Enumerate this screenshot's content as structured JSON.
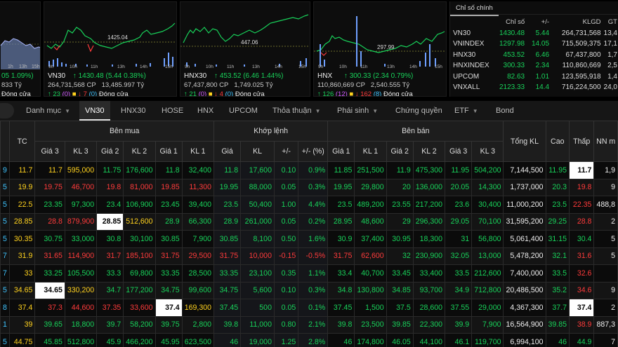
{
  "charts": [
    {
      "id": "vnindex",
      "name": "",
      "title_change": "05 1.09%)",
      "sub": "833 Tỷ",
      "ad": {
        "up": "",
        "down": "",
        "label": "Đóng cửa"
      },
      "hours": [
        "1h",
        "13h",
        "15h"
      ],
      "ref_label": ""
    },
    {
      "id": "vn30",
      "name": "VN30",
      "arrow": "↑",
      "price": "1430.48",
      "change": "(5.44 0.38%)",
      "vol": "264,731,568 CP",
      "value": "13,485.997 Tỷ",
      "up": "↑ 23",
      "ceil": "(0)",
      "down": "↓ 7",
      "floor": "(0)",
      "close": "Đóng cửa",
      "ref_label": "1425.04",
      "hours": [
        "9h",
        "10h",
        "11h",
        "13h",
        "14h",
        "15h"
      ]
    },
    {
      "id": "hnx30",
      "name": "HNX30",
      "arrow": "↑",
      "price": "453.52",
      "change": "(6.46 1.44%)",
      "vol": "67,437,800 CP",
      "value": "1,749.025 Tỷ",
      "up": "↑ 21",
      "ceil": "(0)",
      "down": "↓ 4",
      "floor": "(0)",
      "close": "Đóng cửa",
      "ref_label": "447.06",
      "hours": [
        "9h",
        "10h",
        "11h",
        "13h",
        "14h",
        "15h"
      ]
    },
    {
      "id": "hnx",
      "name": "HNX",
      "arrow": "↑",
      "price": "300.33",
      "change": "(2.34 0.79%)",
      "vol": "110,860,669 CP",
      "value": "2,540.555 Tỷ",
      "up": "↑ 126",
      "ceil": "(12)",
      "down": "↓ 162",
      "floor": "(8)",
      "close": "Đóng cửa",
      "ref_label": "297.99",
      "hours": [
        "9h",
        "10h",
        "11h",
        "13h",
        "14h",
        "15h"
      ]
    }
  ],
  "index_panel": {
    "tab": "Chỉ số chính",
    "headers": [
      "Chỉ số",
      "+/-",
      "KLGD",
      "GT"
    ],
    "rows": [
      {
        "name": "VN30",
        "value": "1430.48",
        "change": "5.44",
        "vol": "264,731,568",
        "gt": "13,4"
      },
      {
        "name": "VNINDEX",
        "value": "1297.98",
        "change": "14.05",
        "vol": "715,509,375",
        "gt": "17,1"
      },
      {
        "name": "HNX30",
        "value": "453.52",
        "change": "6.46",
        "vol": "67,437,800",
        "gt": "1,7"
      },
      {
        "name": "HNXINDEX",
        "value": "300.33",
        "change": "2.34",
        "vol": "110,860,669",
        "gt": "2,5"
      },
      {
        "name": "UPCOM",
        "value": "82.63",
        "change": "1.01",
        "vol": "123,595,918",
        "gt": "1,4"
      },
      {
        "name": "VNXALL",
        "value": "2123.33",
        "change": "14.4",
        "vol": "716,224,500",
        "gt": "24,0"
      }
    ]
  },
  "tabs": [
    {
      "label": "Danh mục",
      "chev": true
    },
    {
      "label": "VN30",
      "active": true
    },
    {
      "label": "HNX30"
    },
    {
      "label": "HOSE"
    },
    {
      "label": "HNX"
    },
    {
      "label": "UPCOM"
    },
    {
      "label": "Thỏa thuận",
      "chev": true
    },
    {
      "label": "Phái sinh",
      "chev": true
    },
    {
      "label": "Chứng quyền"
    },
    {
      "label": "ETF",
      "chev": true
    },
    {
      "label": "Bond"
    }
  ],
  "board": {
    "group_headers": [
      "Bên mua",
      "Khớp lệnh",
      "Bên bán"
    ],
    "col_headers": [
      "TC",
      "Giá 3",
      "KL 3",
      "Giá 2",
      "KL 2",
      "Giá 1",
      "KL 1",
      "Giá",
      "KL",
      "+/-",
      "+/- (%)",
      "Giá 1",
      "KL 1",
      "Giá 2",
      "KL 2",
      "Giá 3",
      "KL 3",
      "Tổng KL",
      "Cao",
      "Thấp",
      "NN m"
    ],
    "rows": [
      {
        "sym": "9",
        "tc": "11.7",
        "b3": "11.7",
        "bk3": "595,000",
        "b2": "11.75",
        "bk2": "176,600",
        "b1": "11.8",
        "bk1": "32,400",
        "p": "11.8",
        "kl": "17,600",
        "ch": "0.10",
        "pct": "0.9%",
        "s1": "11.85",
        "sk1": "251,500",
        "s2": "11.9",
        "sk2": "475,300",
        "s3": "11.95",
        "sk3": "504,200",
        "tot": "7,144,500",
        "hi": "11.95",
        "lo": "11.7",
        "nn": "1,9"
      },
      {
        "sym": "5",
        "tc": "19.9",
        "b3": "19.75",
        "bk3": "46,700",
        "b2": "19.8",
        "bk2": "81,000",
        "b1": "19.85",
        "bk1": "11,300",
        "p": "19.95",
        "kl": "88,000",
        "ch": "0.05",
        "pct": "0.3%",
        "s1": "19.95",
        "sk1": "29,800",
        "s2": "20",
        "sk2": "136,000",
        "s3": "20.05",
        "sk3": "14,300",
        "tot": "1,737,000",
        "hi": "20.3",
        "lo": "19.8",
        "nn": "9"
      },
      {
        "sym": "5",
        "tc": "22.5",
        "b3": "23.35",
        "bk3": "97,300",
        "b2": "23.4",
        "bk2": "106,900",
        "b1": "23.45",
        "bk1": "39,400",
        "p": "23.5",
        "kl": "50,400",
        "ch": "1.00",
        "pct": "4.4%",
        "s1": "23.5",
        "sk1": "489,200",
        "s2": "23.55",
        "sk2": "217,200",
        "s3": "23.6",
        "sk3": "30,400",
        "tot": "11,000,200",
        "hi": "23.5",
        "lo": "22.35",
        "nn": "488,8"
      },
      {
        "sym": "5",
        "tc": "28.85",
        "b3": "28.8",
        "bk3": "879,900",
        "b2": "28.85",
        "bk2": "512,600",
        "b1": "28.9",
        "bk1": "66,300",
        "p": "28.9",
        "kl": "261,000",
        "ch": "0.05",
        "pct": "0.2%",
        "s1": "28.95",
        "sk1": "48,600",
        "s2": "29",
        "sk2": "296,300",
        "s3": "29.05",
        "sk3": "70,100",
        "tot": "31,595,200",
        "hi": "29.25",
        "lo": "28.8",
        "nn": "2"
      },
      {
        "sym": "5",
        "tc": "30.35",
        "b3": "30.75",
        "bk3": "33,000",
        "b2": "30.8",
        "bk2": "30,100",
        "b1": "30.85",
        "bk1": "7,900",
        "p": "30.85",
        "kl": "8,100",
        "ch": "0.50",
        "pct": "1.6%",
        "s1": "30.9",
        "sk1": "37,400",
        "s2": "30.95",
        "sk2": "18,300",
        "s3": "31",
        "sk3": "56,800",
        "tot": "5,061,400",
        "hi": "31.15",
        "lo": "30.4",
        "nn": "5"
      },
      {
        "sym": "7",
        "tc": "31.9",
        "b3": "31.65",
        "bk3": "114,900",
        "b2": "31.7",
        "bk2": "185,100",
        "b1": "31.75",
        "bk1": "29,500",
        "p": "31.75",
        "kl": "10,000",
        "ch": "-0.15",
        "pct": "-0.5%",
        "s1": "31.75",
        "sk1": "62,600",
        "s2": "32",
        "sk2": "230,900",
        "s3": "32.05",
        "sk3": "13,000",
        "tot": "5,478,200",
        "hi": "32.1",
        "lo": "31.6",
        "nn": "5"
      },
      {
        "sym": "7",
        "tc": "33",
        "b3": "33.25",
        "bk3": "105,500",
        "b2": "33.3",
        "bk2": "69,800",
        "b1": "33.35",
        "bk1": "28,500",
        "p": "33.35",
        "kl": "23,100",
        "ch": "0.35",
        "pct": "1.1%",
        "s1": "33.4",
        "sk1": "40,700",
        "s2": "33.45",
        "sk2": "33,400",
        "s3": "33.5",
        "sk3": "212,600",
        "tot": "7,400,000",
        "hi": "33.5",
        "lo": "32.6",
        "nn": ""
      },
      {
        "sym": "5",
        "tc": "34.65",
        "b3": "34.65",
        "bk3": "330,200",
        "b2": "34.7",
        "bk2": "177,200",
        "b1": "34.75",
        "bk1": "99,600",
        "p": "34.75",
        "kl": "5,600",
        "ch": "0.10",
        "pct": "0.3%",
        "s1": "34.8",
        "sk1": "130,800",
        "s2": "34.85",
        "sk2": "93,700",
        "s3": "34.9",
        "sk3": "712,800",
        "tot": "20,486,500",
        "hi": "35.2",
        "lo": "34.6",
        "nn": "9"
      },
      {
        "sym": "8",
        "tc": "37.4",
        "b3": "37.3",
        "bk3": "44,600",
        "b2": "37.35",
        "bk2": "33,600",
        "b1": "37.4",
        "bk1": "169,300",
        "p": "37.45",
        "kl": "500",
        "ch": "0.05",
        "pct": "0.1%",
        "s1": "37.45",
        "sk1": "1,500",
        "s2": "37.5",
        "sk2": "28,600",
        "s3": "37.55",
        "sk3": "29,000",
        "tot": "4,367,300",
        "hi": "37.7",
        "lo": "37.4",
        "nn": "2"
      },
      {
        "sym": "1",
        "tc": "39",
        "b3": "39.65",
        "bk3": "18,800",
        "b2": "39.7",
        "bk2": "58,200",
        "b1": "39.75",
        "bk1": "2,800",
        "p": "39.8",
        "kl": "11,000",
        "ch": "0.80",
        "pct": "2.1%",
        "s1": "39.8",
        "sk1": "23,500",
        "s2": "39.85",
        "sk2": "22,300",
        "s3": "39.9",
        "sk3": "7,900",
        "tot": "16,564,900",
        "hi": "39.85",
        "lo": "38.9",
        "nn": "887,3"
      },
      {
        "sym": "5",
        "tc": "44.75",
        "b3": "45.85",
        "bk3": "512,800",
        "b2": "45.9",
        "bk2": "466,200",
        "b1": "45.95",
        "bk1": "623,500",
        "p": "46",
        "kl": "19,000",
        "ch": "1.25",
        "pct": "2.8%",
        "s1": "46",
        "sk1": "174,800",
        "s2": "46.05",
        "sk2": "44,100",
        "s3": "46.1",
        "sk3": "119,700",
        "tot": "6,994,100",
        "hi": "46",
        "lo": "44.9",
        "nn": "7"
      }
    ]
  }
}
